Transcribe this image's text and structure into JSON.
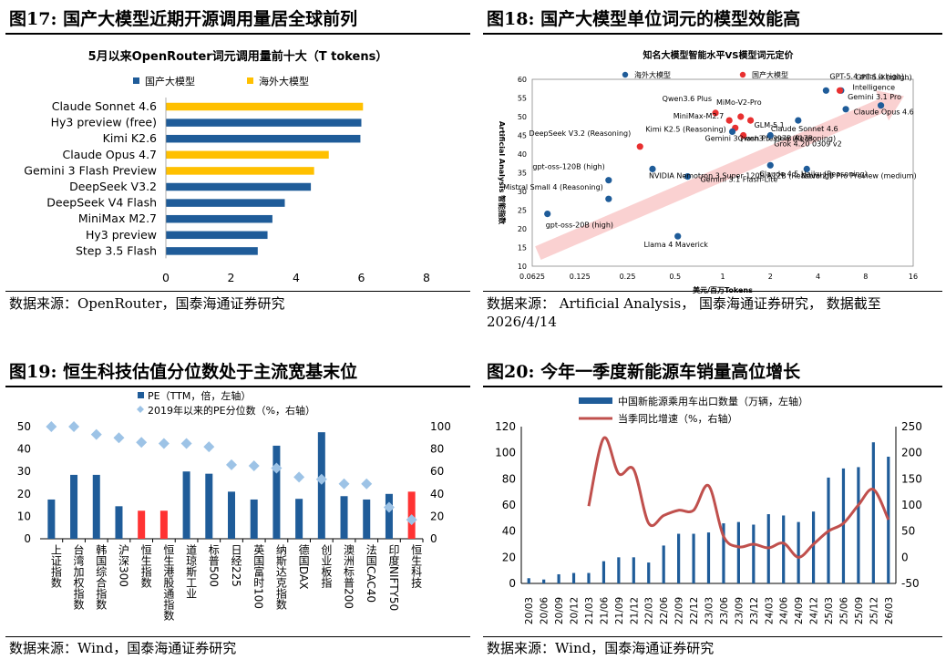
{
  "panels": {
    "p17": {
      "title": "图17:  国产大模型近期开源调用量居全球前列",
      "source": "数据来源：OpenRouter，国泰海通证券研究"
    },
    "p18": {
      "title": "图18:  国产大模型单位词元的模型效能高",
      "source": "数据来源： Artificial Analysis， 国泰海通证券研究， 数据截至",
      "source2": "2026/4/14"
    },
    "p19": {
      "title": "图19:  恒生科技估值分位数处于主流宽基末位",
      "source": "数据来源：Wind，国泰海通证券研究"
    },
    "p20": {
      "title": "图20:  今年一季度新能源车销量高位增长",
      "source": "数据来源：Wind，国泰海通证券研究"
    }
  },
  "chart_data": [
    {
      "id": "c17",
      "type": "bar",
      "orientation": "horizontal",
      "title": "5月以来OpenRouter词元调用量前十大（T tokens）",
      "legend": [
        "国产大模型",
        "海外大模型"
      ],
      "colors": {
        "国产大模型": "#1f5c99",
        "海外大模型": "#ffc000"
      },
      "categories": [
        "Claude Sonnet 4.6",
        "Hy3 preview (free)",
        "Kimi K2.6",
        "Claude Opus 4.7",
        "Gemini 3 Flash Preview",
        "DeepSeek V3.2",
        "DeepSeek V4 Flash",
        "MiniMax M2.7",
        "Hy3 preview",
        "Step 3.5 Flash"
      ],
      "values": [
        6.05,
        6.0,
        5.97,
        5.0,
        4.55,
        4.45,
        3.65,
        3.27,
        3.12,
        2.82
      ],
      "groups": [
        "海外大模型",
        "国产大模型",
        "国产大模型",
        "海外大模型",
        "海外大模型",
        "国产大模型",
        "国产大模型",
        "国产大模型",
        "国产大模型",
        "国产大模型"
      ],
      "xlim": [
        0,
        8
      ],
      "xticks": [
        "0",
        "2",
        "4",
        "6",
        "8"
      ],
      "grid": false,
      "legend_position": "top"
    },
    {
      "id": "c18",
      "type": "scatter",
      "title": "知名大模型智能水平VS模型词元定价",
      "xlabel": "美元/百万Tokens",
      "ylabel": "Artificial Analysis 智能指数",
      "xscale": "log2",
      "xlim": [
        0.0625,
        16
      ],
      "ylim": [
        10,
        60
      ],
      "xticks": [
        "0.0625",
        "0.125",
        "0.25",
        "0.5",
        "1",
        "2",
        "4",
        "8",
        "16"
      ],
      "yticks": [
        "10",
        "15",
        "20",
        "25",
        "30",
        "35",
        "40",
        "45",
        "50",
        "55",
        "60"
      ],
      "legend": [
        "海外大模型",
        "国产大模型"
      ],
      "colors": {
        "海外大模型": "#1f5c99",
        "国产大模型": "#e83030"
      },
      "trend_arrow": "light red arrow rising from lower-left to upper-right",
      "points": [
        {
          "name": "GPT-5.4 mini (xhigh)",
          "x": 4.5,
          "y": 57,
          "group": "海外大模型"
        },
        {
          "name": "GPT-5.4 (xhigh)",
          "x": 5.6,
          "y": 57,
          "group": "海外大模型"
        },
        {
          "name": "Intelligence",
          "x": 5.5,
          "y": 57,
          "group": "国产大模型"
        },
        {
          "name": "MiMo-V2-Pro",
          "x": 1.3,
          "y": 50,
          "group": "国产大模型"
        },
        {
          "name": "Qwen3.6 Plus",
          "x": 0.9,
          "y": 51,
          "group": "国产大模型"
        },
        {
          "name": "MiniMax-M2.7",
          "x": 1.1,
          "y": 49,
          "group": "国产大模型"
        },
        {
          "name": "Gemini 3.1 Pro",
          "x": 6,
          "y": 52,
          "group": "海外大模型"
        },
        {
          "name": "Claude Opus 4.6",
          "x": 10,
          "y": 53,
          "group": "海外大模型"
        },
        {
          "name": "GLM-5.1",
          "x": 1.5,
          "y": 49,
          "group": "国产大模型"
        },
        {
          "name": "Kimi K2.5 (Reasoning)",
          "x": 1.2,
          "y": 47,
          "group": "国产大模型"
        },
        {
          "name": "Claude Sonnet 4.6",
          "x": 3.0,
          "y": 49,
          "group": "海外大模型"
        },
        {
          "name": "DeepSeek V3.2 (Reasoning)",
          "x": 0.3,
          "y": 42,
          "group": "国产大模型"
        },
        {
          "name": "Gemini 3 Flash Preview (Reasoning)",
          "x": 1.15,
          "y": 46,
          "group": "海外大模型"
        },
        {
          "name": "Qwen3.5 397B A17B",
          "x": 1.35,
          "y": 45,
          "group": "国产大模型"
        },
        {
          "name": "Grok 4.20 0309 v2",
          "x": 2.0,
          "y": 45,
          "group": "海外大模型"
        },
        {
          "name": "Nova 2.0 Pro Preview (medium)",
          "x": 3.4,
          "y": 36,
          "group": "海外大模型"
        },
        {
          "name": "Claude 4.5 Haiku (Reasoning)",
          "x": 2.0,
          "y": 37,
          "group": "海外大模型"
        },
        {
          "name": "gpt-oss-120B (high)",
          "x": 0.19,
          "y": 33,
          "group": "海外大模型"
        },
        {
          "name": "Gemini 3.1 Flash-Lite",
          "x": 0.6,
          "y": 34,
          "group": "海外大模型"
        },
        {
          "name": "Mistral Small 4 (Reasoning)",
          "x": 0.19,
          "y": 28,
          "group": "海外大模型"
        },
        {
          "name": "NVIDIA Nemotron 3 Super 120B A12B (Reasoning)",
          "x": 0.36,
          "y": 36,
          "group": "海外大模型"
        },
        {
          "name": "gpt-oss-20B (high)",
          "x": 0.078,
          "y": 24,
          "group": "海外大模型"
        },
        {
          "name": "Llama 4 Maverick",
          "x": 0.52,
          "y": 18,
          "group": "海外大模型"
        }
      ]
    },
    {
      "id": "c19",
      "type": "bar",
      "legend": [
        "PE（TTM，倍，左轴）",
        "2019年以来的PE分位数（%，右轴）"
      ],
      "colors": {
        "bar": "#1f5c99",
        "highlight": "#ff3333",
        "marker": "#9dc3e6"
      },
      "categories": [
        "上证指数",
        "台湾加权指数",
        "韩国综合指数",
        "沪深300",
        "恒生指数",
        "恒生港股通指数",
        "道琼斯工业",
        "标普500",
        "日经225",
        "英国富时100",
        "纳斯达克指数",
        "德国DAX",
        "创业板指",
        "澳洲标普200",
        "法国CAC40",
        "印度NIFTY50",
        "恒生科技"
      ],
      "series": [
        {
          "name": "PE（TTM，倍，左轴）",
          "axis": "left",
          "values": [
            17.5,
            28.5,
            28.5,
            14.5,
            12.5,
            12.5,
            30,
            29,
            21,
            17.5,
            41.5,
            17.8,
            47.5,
            19,
            17.5,
            20,
            21
          ]
        },
        {
          "name": "2019年以来的PE分位数（%，右轴）",
          "axis": "right",
          "values": [
            100,
            100,
            93,
            90,
            86,
            85,
            85,
            82,
            66,
            65,
            63,
            55,
            53,
            49,
            49,
            28,
            17
          ]
        }
      ],
      "highlight": [
        "恒生指数",
        "恒生港股通指数",
        "恒生科技"
      ],
      "ylim_left": [
        0,
        50
      ],
      "yticks_left": [
        "0",
        "10",
        "20",
        "30",
        "40",
        "50"
      ],
      "ylim_right": [
        0,
        100
      ],
      "yticks_right": [
        "0",
        "20",
        "40",
        "60",
        "80",
        "100"
      ],
      "legend_position": "top-left"
    },
    {
      "id": "c20",
      "type": "bar+line",
      "legend": [
        "中国新能源乘用车出口数量（万辆，左轴）",
        "当季同比增速（%，右轴）"
      ],
      "colors": {
        "bar": "#1f5c99",
        "line": "#c0504d"
      },
      "x": [
        "20/03",
        "20/06",
        "20/09",
        "20/12",
        "21/03",
        "21/06",
        "21/09",
        "21/12",
        "22/03",
        "22/06",
        "22/09",
        "22/12",
        "23/03",
        "23/06",
        "23/09",
        "23/12",
        "24/03",
        "24/06",
        "24/09",
        "24/12",
        "25/03",
        "25/06",
        "25/09",
        "25/12",
        "26/03"
      ],
      "series": [
        {
          "name": "中国新能源乘用车出口数量（万辆，左轴）",
          "axis": "left",
          "values": [
            4,
            3,
            7,
            8,
            8,
            17,
            20,
            20,
            16,
            29,
            38,
            38,
            39,
            46,
            47,
            45,
            53,
            52,
            47,
            55,
            81,
            88,
            89,
            108,
            97
          ]
        },
        {
          "name": "当季同比增速（%，右轴）",
          "axis": "right",
          "values": [
            null,
            null,
            null,
            null,
            98,
            228,
            160,
            168,
            65,
            80,
            90,
            90,
            137,
            40,
            20,
            25,
            18,
            27,
            0,
            25,
            50,
            65,
            100,
            130,
            72
          ]
        }
      ],
      "ylim_left": [
        0,
        120
      ],
      "yticks_left": [
        "0",
        "20",
        "40",
        "60",
        "80",
        "100",
        "120"
      ],
      "ylim_right": [
        -50,
        250
      ],
      "yticks_right": [
        "-50",
        "0",
        "50",
        "100",
        "150",
        "200",
        "250"
      ],
      "legend_position": "top"
    }
  ]
}
